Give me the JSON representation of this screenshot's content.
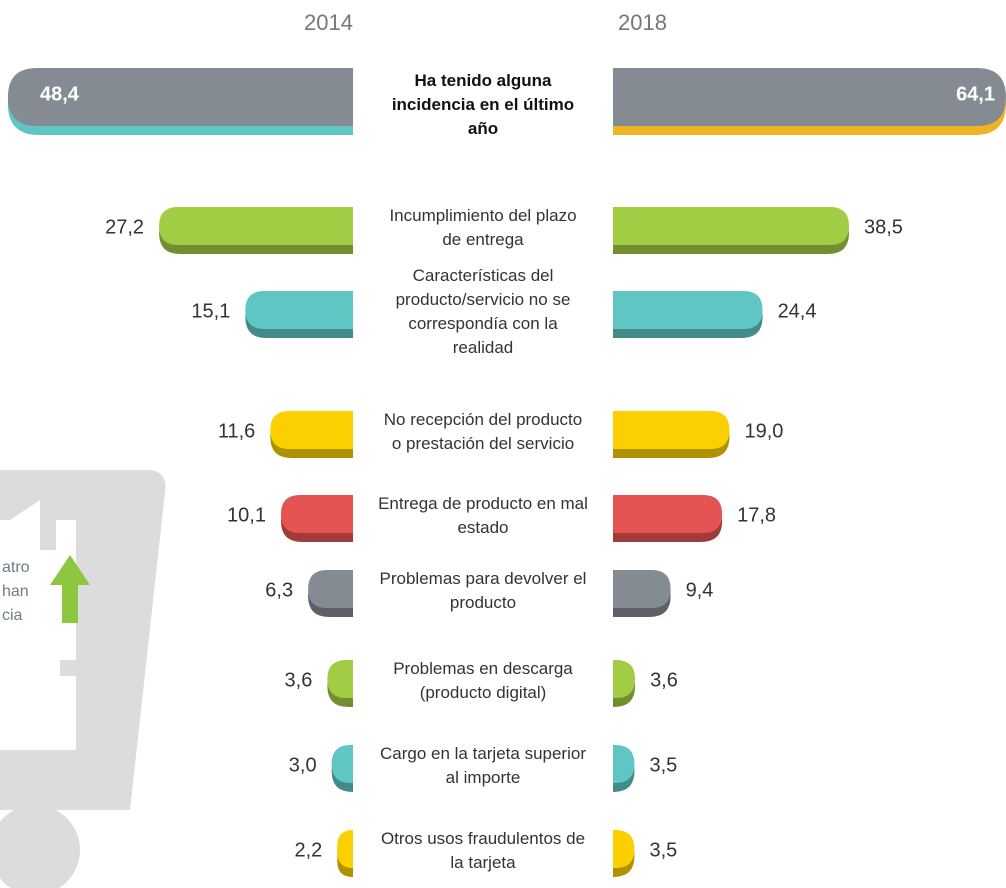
{
  "chart_data": {
    "type": "butterfly-bar",
    "categories": [
      "Ha tenido alguna incidencia en el último año",
      "Incumplimiento del plazo de entrega",
      "Características del producto/servicio no se correspondía con la realidad",
      "No recepción del producto o prestación del servicio",
      "Entrega de producto en mal estado",
      "Problemas para devolver el producto",
      "Problemas en descarga (producto digital)",
      "Cargo en la tarjeta superior al importe",
      "Otros usos fraudulentos de la tarjeta"
    ],
    "colors": [
      "#858b93",
      "#a3cc45",
      "#5fc6c4",
      "#fccf00",
      "#e55453",
      "#858b93",
      "#a3cc45",
      "#5fc6c4",
      "#fccf00"
    ],
    "series": [
      {
        "name": "2014",
        "accent": "#5fc6c4",
        "values": [
          48.4,
          27.2,
          15.1,
          11.6,
          10.1,
          6.3,
          3.6,
          3.0,
          2.2
        ],
        "value_labels": [
          "48,4",
          "27,2",
          "15,1",
          "11,6",
          "10,1",
          "6,3",
          "3,6",
          "3,0",
          "2,2"
        ]
      },
      {
        "name": "2018",
        "accent": "#f0b323",
        "values": [
          64.1,
          38.5,
          24.4,
          19.0,
          17.8,
          9.4,
          3.6,
          3.5,
          3.5
        ],
        "value_labels": [
          "64,1",
          "38,5",
          "24,4",
          "19,0",
          "17,8",
          "9,4",
          "3,6",
          "3,5",
          "3,5"
        ]
      }
    ],
    "annotation_lines": [
      "atro",
      "han",
      "cia"
    ]
  }
}
